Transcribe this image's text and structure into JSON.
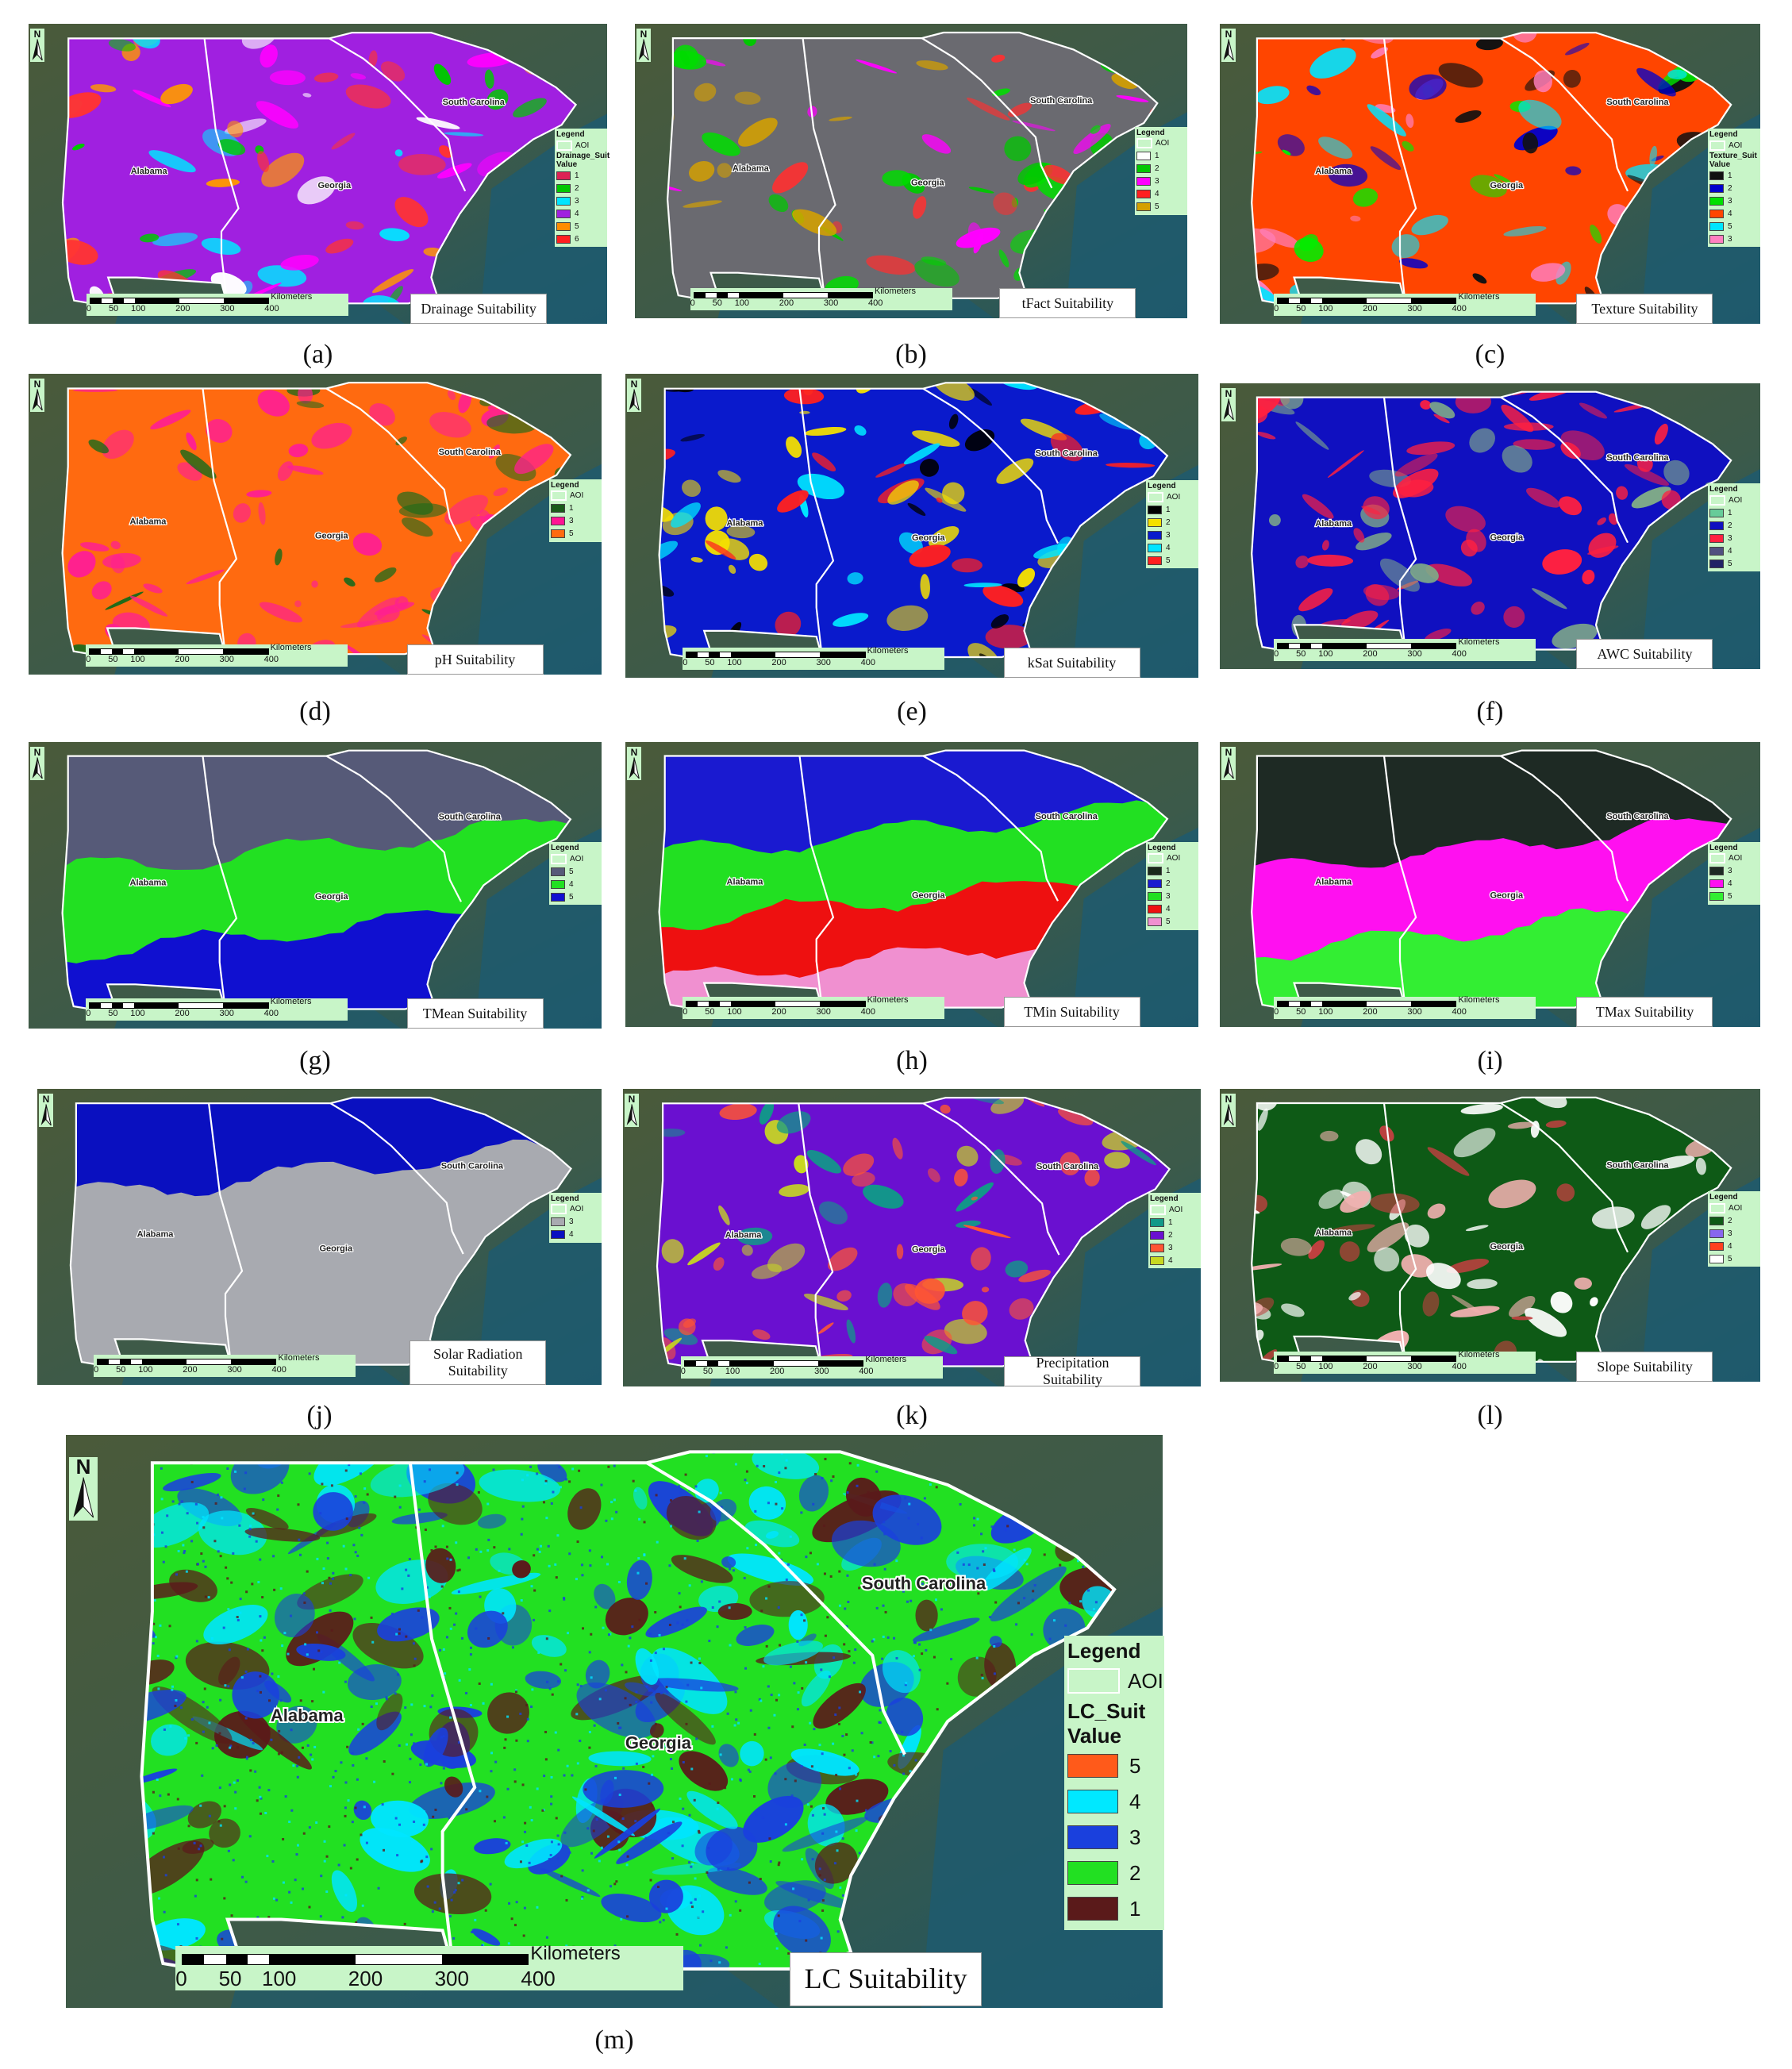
{
  "states": {
    "al": "Alabama",
    "ga": "Georgia",
    "sc": "South Carolina"
  },
  "north": "N",
  "scale": {
    "unit": "Kilometers",
    "ticks": [
      "0",
      "50",
      "100",
      "200",
      "300",
      "400"
    ]
  },
  "legend_title": "Legend",
  "aoi_label": "AOI",
  "value_label": "Value",
  "panels": [
    {
      "caption": "(a)",
      "title": "Drainage Suitability",
      "field": "Drainage_Suit",
      "base": "#a020e0",
      "patches": [
        "#ff00ff",
        "#00e5ff",
        "#00c800",
        "#ff3333",
        "#ff9900",
        "#ffffff"
      ],
      "classes": [
        {
          "v": "1",
          "c": "#dd2255"
        },
        {
          "v": "2",
          "c": "#00c800"
        },
        {
          "v": "3",
          "c": "#00e5ff"
        },
        {
          "v": "4",
          "c": "#a020e0"
        },
        {
          "v": "5",
          "c": "#ff8c00"
        },
        {
          "v": "6",
          "c": "#ff2020"
        }
      ],
      "legend_shows_value": true
    },
    {
      "caption": "(b)",
      "title": "tFact Suitability",
      "field": "",
      "base": "#6a6a70",
      "patches": [
        "#ff00ff",
        "#00c800",
        "#ff3030",
        "#d4a000",
        "#00dd00"
      ],
      "classes": [
        {
          "v": "1",
          "c": "#ffffff"
        },
        {
          "v": "2",
          "c": "#00c800"
        },
        {
          "v": "3",
          "c": "#ff00ff"
        },
        {
          "v": "4",
          "c": "#ff2020"
        },
        {
          "v": "5",
          "c": "#d4a000"
        }
      ],
      "legend_shows_value": false
    },
    {
      "caption": "(c)",
      "title": "Texture Suitability",
      "field": "Texture_Suit",
      "base": "#ff4500",
      "patches": [
        "#00ee00",
        "#0000cc",
        "#00e5ff",
        "#ff80c0",
        "#111111"
      ],
      "classes": [
        {
          "v": "1",
          "c": "#111111"
        },
        {
          "v": "2",
          "c": "#0000cc"
        },
        {
          "v": "3",
          "c": "#00e000"
        },
        {
          "v": "4",
          "c": "#ff4500"
        },
        {
          "v": "5",
          "c": "#00e5ff"
        },
        {
          "v": "3",
          "c": "#ff80c0"
        }
      ],
      "legend_shows_value": true
    },
    {
      "caption": "(d)",
      "title": "pH Suitability",
      "field": "",
      "base": "#ff6a10",
      "patches": [
        "#ff2090",
        "#ff2090",
        "#1a6a1a",
        "#ff2090"
      ],
      "classes": [
        {
          "v": "1",
          "c": "#1a5a1a"
        },
        {
          "v": "3",
          "c": "#ff1493"
        },
        {
          "v": "5",
          "c": "#ff6a10"
        }
      ],
      "legend_shows_value": false
    },
    {
      "caption": "(e)",
      "title": "kSat Suitability",
      "field": "",
      "base": "#0a1acc",
      "patches": [
        "#00e5ff",
        "#f5e000",
        "#000000",
        "#f5e000",
        "#ff2020"
      ],
      "classes": [
        {
          "v": "1",
          "c": "#000000"
        },
        {
          "v": "2",
          "c": "#f5e000"
        },
        {
          "v": "3",
          "c": "#0a1acc"
        },
        {
          "v": "4",
          "c": "#00e5ff"
        },
        {
          "v": "5",
          "c": "#ff2020"
        }
      ],
      "legend_shows_value": false
    },
    {
      "caption": "(f)",
      "title": "AWC Suitability",
      "field": "",
      "base": "#1010c0",
      "patches": [
        "#ff2040",
        "#ff2040",
        "#7faa88",
        "#ff2040"
      ],
      "classes": [
        {
          "v": "1",
          "c": "#66cc99"
        },
        {
          "v": "2",
          "c": "#1010c0"
        },
        {
          "v": "3",
          "c": "#ff2040"
        },
        {
          "v": "4",
          "c": "#505080"
        },
        {
          "v": "5",
          "c": "#222266"
        }
      ],
      "legend_shows_value": false
    },
    {
      "caption": "(g)",
      "title": "TMean Suitability",
      "field": "",
      "bands": [
        "#565a78",
        "#22e022",
        "#1010d0"
      ],
      "classes": [
        {
          "v": "5",
          "c": "#565a78"
        },
        {
          "v": "4",
          "c": "#22e022"
        },
        {
          "v": "5",
          "c": "#1010d0"
        }
      ],
      "legend_shows_value": false
    },
    {
      "caption": "(h)",
      "title": "TMin Suitability",
      "field": "",
      "bands": [
        "#1a1ad0",
        "#22e022",
        "#ee1010",
        "#f090d0"
      ],
      "classes": [
        {
          "v": "1",
          "c": "#1a2a1a"
        },
        {
          "v": "2",
          "c": "#1a1ad0"
        },
        {
          "v": "3",
          "c": "#22e022"
        },
        {
          "v": "4",
          "c": "#ee1010"
        },
        {
          "v": "5",
          "c": "#f090d0"
        }
      ],
      "legend_shows_value": false
    },
    {
      "caption": "(i)",
      "title": "TMax Suitability",
      "field": "",
      "bands": [
        "#1e2a24",
        "#ff10f0",
        "#33ee33"
      ],
      "classes": [
        {
          "v": "3",
          "c": "#1e2a24"
        },
        {
          "v": "4",
          "c": "#ff10f0"
        },
        {
          "v": "5",
          "c": "#33ee33"
        }
      ],
      "legend_shows_value": false
    },
    {
      "caption": "(j)",
      "title": "Solar  Radiation Suitability",
      "field": "",
      "bands": [
        "#0a10c0",
        "#a8aab0"
      ],
      "classes": [
        {
          "v": "3",
          "c": "#a8aab0"
        },
        {
          "v": "4",
          "c": "#0a10c0"
        }
      ],
      "legend_shows_value": false
    },
    {
      "caption": "(k)",
      "title": "Precipitation Suitability",
      "field": "",
      "base": "#6a10d0",
      "patches": [
        "#ff5533",
        "#c8d820",
        "#119988",
        "#ff5533"
      ],
      "classes": [
        {
          "v": "1",
          "c": "#119988"
        },
        {
          "v": "2",
          "c": "#6a10d0"
        },
        {
          "v": "3",
          "c": "#ff5533"
        },
        {
          "v": "4",
          "c": "#c8d820"
        }
      ],
      "legend_shows_value": false
    },
    {
      "caption": "(l)",
      "title": "Slope Suitability",
      "field": "",
      "base": "#0e5a16",
      "patches": [
        "#f2b0b0",
        "#ffffff",
        "#c04040",
        "#ffffff"
      ],
      "classes": [
        {
          "v": "2",
          "c": "#0e5a16"
        },
        {
          "v": "3",
          "c": "#8866ee"
        },
        {
          "v": "4",
          "c": "#ff4020"
        },
        {
          "v": "5",
          "c": "#ffffff"
        }
      ],
      "legend_shows_value": false
    },
    {
      "caption": "(m)",
      "title": "LC Suitability",
      "field": "LC_Suit",
      "base": "#22e022",
      "patches": [
        "#1a40dd",
        "#00e5ff",
        "#1a40dd",
        "#5a1a1a"
      ],
      "classes": [
        {
          "v": "5",
          "c": "#ff5a1a"
        },
        {
          "v": "4",
          "c": "#00e8ff"
        },
        {
          "v": "3",
          "c": "#1a40dd"
        },
        {
          "v": "2",
          "c": "#22e022"
        },
        {
          "v": "1",
          "c": "#5a1a1a"
        }
      ],
      "legend_shows_value": true
    }
  ]
}
